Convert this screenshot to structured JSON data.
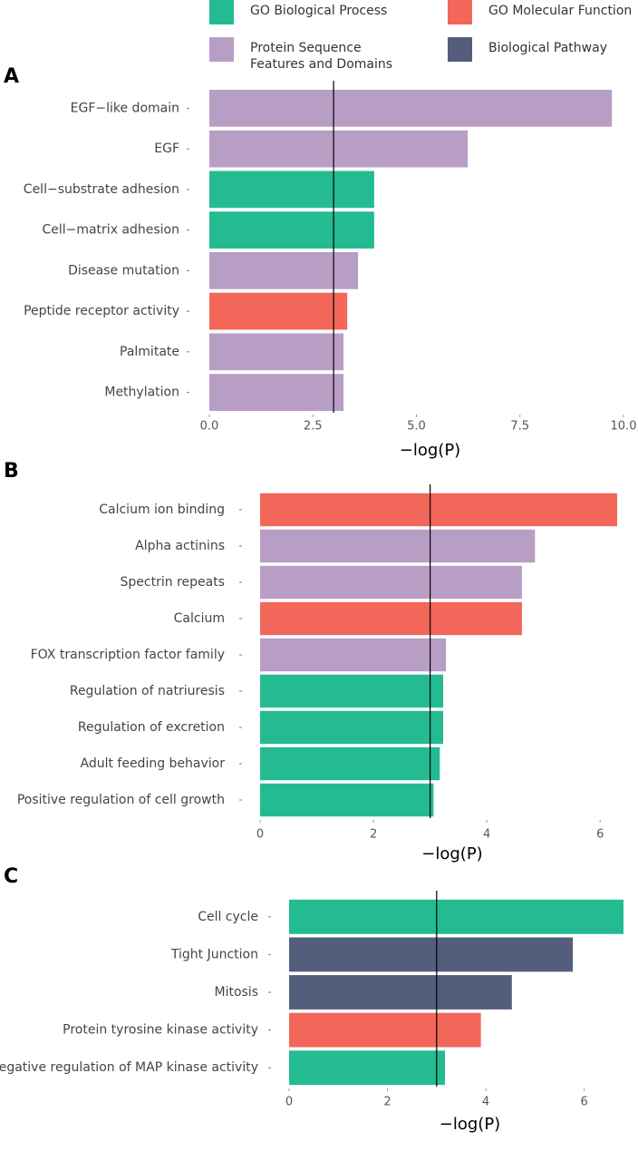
{
  "legend": [
    {
      "name": "GO Biological Process",
      "color": "#24bb92"
    },
    {
      "name": "GO Molecular Function",
      "color": "#f2675a"
    },
    {
      "name": "Protein Sequence Features and Domains",
      "color": "#b89ec5"
    },
    {
      "name": "Biological Pathway",
      "color": "#545e7c"
    }
  ],
  "chart_data": [
    {
      "type": "barh",
      "label": "A",
      "xlabel": "−log(P)",
      "categories": [
        "EGF−like domain",
        "EGF",
        "Cell−substrate adhesion",
        "Cell−matrix adhesion",
        "Disease mutation",
        "Peptide receptor activity",
        "Palmitate",
        "Methylation"
      ],
      "values": [
        9.72,
        6.24,
        3.98,
        3.98,
        3.59,
        3.33,
        3.24,
        3.24
      ],
      "colors": [
        "#b89ec5",
        "#b89ec5",
        "#24bb92",
        "#24bb92",
        "#b89ec5",
        "#f2675a",
        "#b89ec5",
        "#b89ec5"
      ],
      "reference_line": 3,
      "xlim": [
        0,
        10
      ],
      "xticks": [
        {
          "value": 0,
          "label": "0.0"
        },
        2.5,
        {
          "value": 5,
          "label": "5.0"
        },
        7.5,
        {
          "value": 10,
          "label": "10.0"
        }
      ]
    },
    {
      "type": "barh",
      "label": "B",
      "xlabel": "−log(P)",
      "categories": [
        "Calcium ion binding",
        "Alpha actinins",
        "Spectrin repeats",
        "Calcium",
        "FOX transcription factor family",
        "Regulation of natriuresis",
        "Regulation of excretion",
        "Adult feeding behavior",
        "Positive regulation of cell growth"
      ],
      "values": [
        6.3,
        4.85,
        4.62,
        4.62,
        3.28,
        3.23,
        3.23,
        3.17,
        3.06
      ],
      "colors": [
        "#f2675a",
        "#b89ec5",
        "#b89ec5",
        "#f2675a",
        "#b89ec5",
        "#24bb92",
        "#24bb92",
        "#24bb92",
        "#24bb92"
      ],
      "reference_line": 3,
      "xlim": [
        0,
        6.3
      ],
      "xticks": [
        0,
        2,
        4,
        6
      ]
    },
    {
      "type": "barh",
      "label": "C",
      "xlabel": "−log(P)",
      "categories": [
        "Cell cycle",
        "Tight Junction",
        "Mitosis",
        "Protein tyrosine kinase activity",
        "Negative regulation of MAP kinase activity"
      ],
      "values": [
        6.8,
        5.77,
        4.53,
        3.9,
        3.17
      ],
      "colors": [
        "#24bb92",
        "#545e7c",
        "#545e7c",
        "#f2675a",
        "#24bb92"
      ],
      "reference_line": 3,
      "xlim": [
        0,
        6.8
      ],
      "xticks": [
        0,
        2,
        4,
        6
      ]
    }
  ]
}
